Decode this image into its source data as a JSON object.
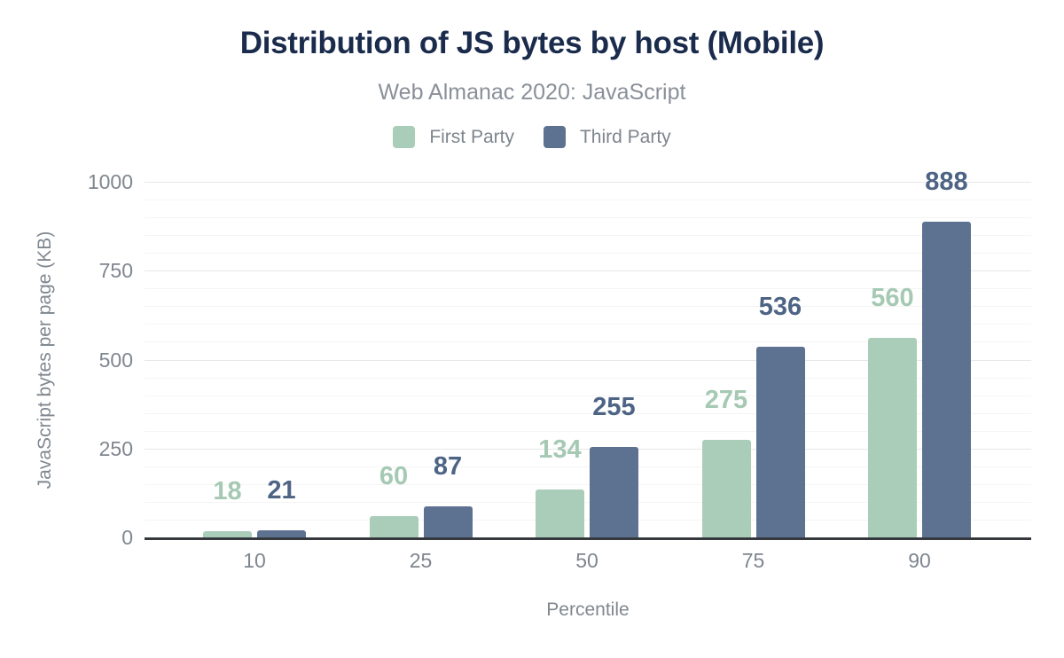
{
  "chart_data": {
    "type": "bar",
    "title": "Distribution of JS bytes by host (Mobile)",
    "subtitle": "Web Almanac 2020: JavaScript",
    "categories": [
      "10",
      "25",
      "50",
      "75",
      "90"
    ],
    "series": [
      {
        "name": "First Party",
        "color": "#a9cdb8",
        "label_color": "#a5c9b3",
        "values": [
          18,
          60,
          134,
          275,
          560
        ]
      },
      {
        "name": "Third Party",
        "color": "#5d7190",
        "label_color": "#4e6485",
        "values": [
          21,
          87,
          255,
          536,
          888
        ]
      }
    ],
    "xlabel": "Percentile",
    "ylabel": "JavaScript bytes per page (KB)",
    "ylim": [
      0,
      1000
    ],
    "yticks": [
      0,
      250,
      500,
      750,
      1000
    ],
    "minor_tick_step": 50,
    "grid": "on",
    "legend_position": "top",
    "value_labels": "on",
    "title_color": "#1a2b4c",
    "axis_text_color": "#7f868f"
  }
}
